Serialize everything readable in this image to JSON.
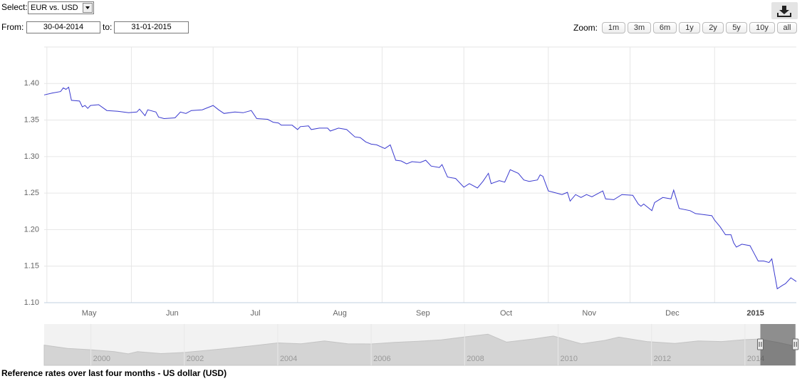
{
  "controls": {
    "select_label": "Select:",
    "currency": "EUR vs. USD",
    "from_label": "From:",
    "from": "30-04-2014",
    "to_label": "to:",
    "to": "31-01-2015",
    "zoom_label": "Zoom:",
    "zoom_buttons": [
      "1m",
      "3m",
      "6m",
      "1y",
      "2y",
      "5y",
      "10y",
      "all"
    ]
  },
  "chart_data": [
    {
      "type": "line",
      "color": "#3a3acf",
      "grid": true,
      "xlim": [
        0,
        276
      ],
      "xticks": [
        {
          "value": 1,
          "label": "May"
        },
        {
          "value": 32,
          "label": "Jun"
        },
        {
          "value": 62,
          "label": "Jul"
        },
        {
          "value": 93,
          "label": "Aug"
        },
        {
          "value": 124,
          "label": "Sep"
        },
        {
          "value": 154,
          "label": "Oct"
        },
        {
          "value": 185,
          "label": "Nov"
        },
        {
          "value": 215,
          "label": "Dec"
        },
        {
          "value": 246,
          "label": "2015"
        }
      ],
      "ylim": [
        1.1,
        1.45
      ],
      "yticks": [
        {
          "value": 1.1,
          "label": "1.10"
        },
        {
          "value": 1.15,
          "label": "1.15"
        },
        {
          "value": 1.2,
          "label": "1.20"
        },
        {
          "value": 1.25,
          "label": "1.25"
        },
        {
          "value": 1.3,
          "label": "1.30"
        },
        {
          "value": 1.35,
          "label": "1.35"
        },
        {
          "value": 1.4,
          "label": "1.40"
        }
      ],
      "x": [
        0,
        3,
        6,
        7,
        8,
        9,
        10,
        13,
        14,
        15,
        16,
        17,
        20,
        23,
        27,
        31,
        34,
        35,
        37,
        38,
        41,
        42,
        44,
        48,
        50,
        52,
        54,
        58,
        62,
        64,
        66,
        70,
        73,
        76,
        78,
        82,
        84,
        86,
        87,
        91,
        93,
        94,
        97,
        98,
        101,
        104,
        105,
        108,
        111,
        114,
        116,
        118,
        120,
        122,
        125,
        127,
        129,
        131,
        133,
        135,
        138,
        140,
        142,
        145,
        146,
        148,
        151,
        154,
        156,
        159,
        161,
        163,
        164,
        167,
        169,
        171,
        174,
        176,
        178,
        181,
        182,
        183,
        185,
        188,
        190,
        192,
        193,
        195,
        197,
        199,
        201,
        205,
        206,
        209,
        212,
        216,
        218,
        219,
        220,
        223,
        224,
        227,
        230,
        231,
        233,
        237,
        239,
        241,
        245,
        246,
        248,
        250,
        252,
        253,
        254,
        256,
        259,
        260,
        262,
        264,
        266,
        267,
        269,
        271,
        272,
        274,
        276
      ],
      "values": [
        1.3844,
        1.387,
        1.389,
        1.394,
        1.392,
        1.395,
        1.377,
        1.376,
        1.368,
        1.37,
        1.366,
        1.37,
        1.371,
        1.363,
        1.362,
        1.36,
        1.361,
        1.365,
        1.356,
        1.364,
        1.361,
        1.354,
        1.352,
        1.353,
        1.361,
        1.359,
        1.363,
        1.364,
        1.37,
        1.364,
        1.359,
        1.361,
        1.36,
        1.363,
        1.352,
        1.351,
        1.347,
        1.346,
        1.343,
        1.343,
        1.337,
        1.341,
        1.342,
        1.337,
        1.339,
        1.339,
        1.335,
        1.339,
        1.337,
        1.327,
        1.326,
        1.32,
        1.317,
        1.316,
        1.311,
        1.316,
        1.295,
        1.294,
        1.29,
        1.293,
        1.292,
        1.295,
        1.287,
        1.285,
        1.289,
        1.272,
        1.27,
        1.258,
        1.263,
        1.257,
        1.266,
        1.277,
        1.263,
        1.267,
        1.265,
        1.282,
        1.277,
        1.268,
        1.266,
        1.268,
        1.275,
        1.273,
        1.253,
        1.25,
        1.248,
        1.251,
        1.239,
        1.248,
        1.244,
        1.248,
        1.245,
        1.253,
        1.242,
        1.241,
        1.248,
        1.247,
        1.235,
        1.232,
        1.235,
        1.226,
        1.237,
        1.244,
        1.242,
        1.254,
        1.229,
        1.226,
        1.222,
        1.221,
        1.219,
        1.213,
        1.204,
        1.193,
        1.193,
        1.182,
        1.176,
        1.18,
        1.178,
        1.171,
        1.157,
        1.157,
        1.155,
        1.16,
        1.119,
        1.124,
        1.126,
        1.134,
        1.129
      ]
    },
    {
      "type": "area",
      "color": "#d4d4d4",
      "xlim": [
        1999.0,
        2015.1
      ],
      "ylim": [
        0.43,
        1.94
      ],
      "xticks": [
        2000,
        2002,
        2004,
        2006,
        2008,
        2010,
        2012,
        2014
      ],
      "selection": [
        2014.33,
        2015.08
      ],
      "x": [
        1999,
        1999.5,
        2000,
        2000.5,
        2000.8,
        2001,
        2001.5,
        2002,
        2002.5,
        2003,
        2003.5,
        2004,
        2004.5,
        2005,
        2005.5,
        2006,
        2006.5,
        2007,
        2007.5,
        2008,
        2008.5,
        2008.9,
        2009.5,
        2009.9,
        2010.5,
        2011,
        2011.3,
        2011.9,
        2012.5,
        2013,
        2013.5,
        2014,
        2014.3,
        2014.7,
        2015.08
      ],
      "values": [
        1.17,
        1.05,
        1.0,
        0.93,
        0.85,
        0.93,
        0.86,
        0.9,
        0.98,
        1.06,
        1.15,
        1.25,
        1.22,
        1.32,
        1.22,
        1.21,
        1.27,
        1.31,
        1.36,
        1.47,
        1.57,
        1.28,
        1.4,
        1.5,
        1.22,
        1.34,
        1.46,
        1.3,
        1.23,
        1.32,
        1.3,
        1.37,
        1.39,
        1.27,
        1.13
      ]
    }
  ],
  "caption": "Reference rates over last four months - US dollar (USD)"
}
